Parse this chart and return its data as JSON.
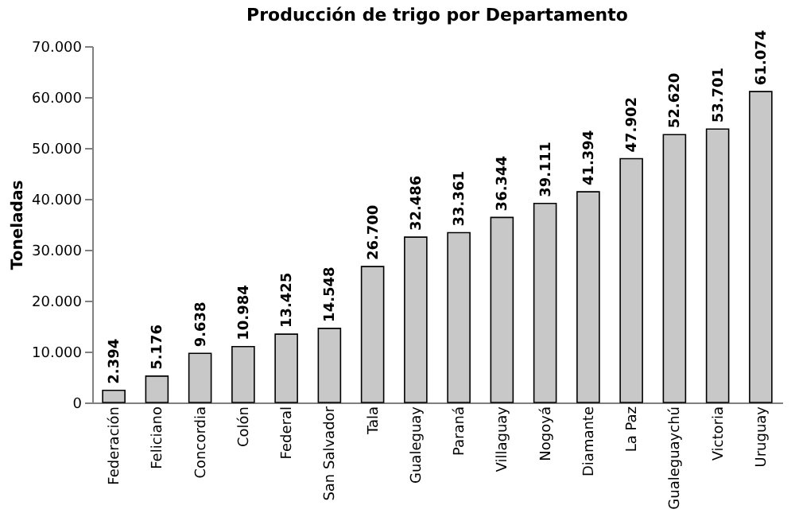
{
  "chart_data": {
    "type": "bar",
    "title": "Producción de trigo por Departamento",
    "ylabel": "Toneladas",
    "categories": [
      "Federación",
      "Feliciano",
      "Concordia",
      "Colón",
      "Federal",
      "San Salvador",
      "Tala",
      "Gualeguay",
      "Paraná",
      "Villaguay",
      "Nogoyá",
      "Diamante",
      "La Paz",
      "Gualeguaychú",
      "Victoria",
      "Uruguay"
    ],
    "values": [
      2394,
      5176,
      9638,
      10984,
      13425,
      14548,
      26700,
      32486,
      33361,
      36344,
      39111,
      41394,
      47902,
      52620,
      53701,
      61074
    ],
    "value_labels": [
      "2.394",
      "5.176",
      "9.638",
      "10.984",
      "13.425",
      "14.548",
      "26.700",
      "32.486",
      "33.361",
      "36.344",
      "39.111",
      "41.394",
      "47.902",
      "52.620",
      "53.701",
      "61.074"
    ],
    "color": "#c8c8c8",
    "ylim": [
      0,
      70000
    ],
    "yticks": [
      0,
      {
        "value": 10000,
        "label": "10.000"
      },
      {
        "value": 20000,
        "label": "20.000"
      },
      {
        "value": 30000,
        "label": "30.000"
      },
      {
        "value": 40000,
        "label": "40.000"
      },
      {
        "value": 50000,
        "label": "50.000"
      },
      {
        "value": 60000,
        "label": "60.000"
      },
      {
        "value": 70000,
        "label": "70.000"
      }
    ],
    "grid": false
  }
}
